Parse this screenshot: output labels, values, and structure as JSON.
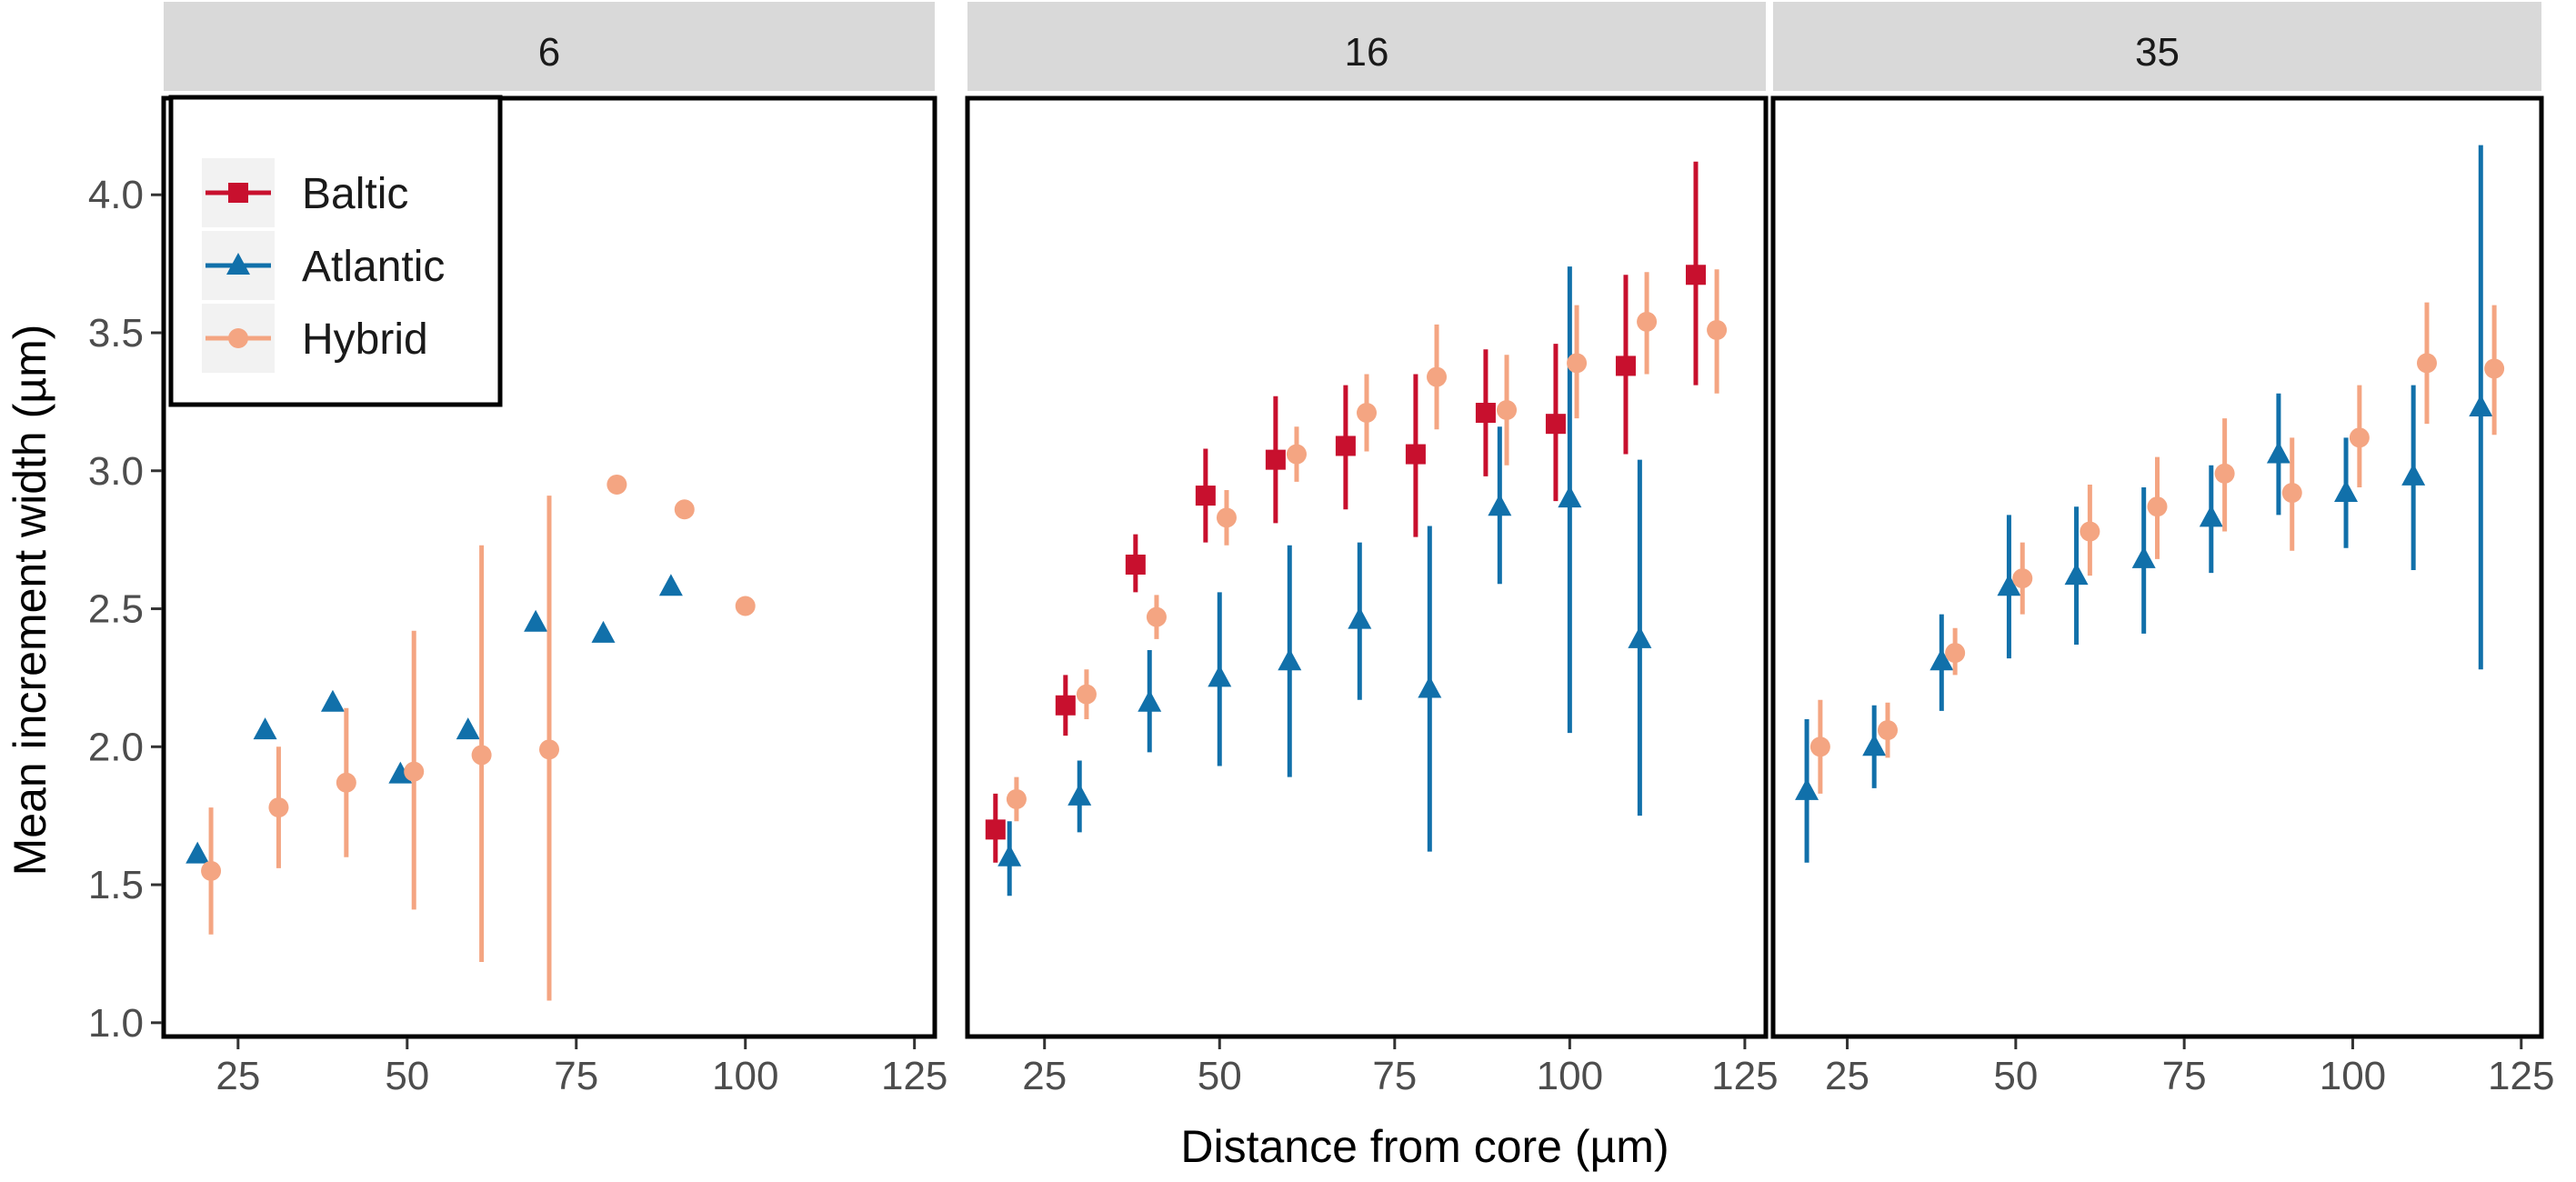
{
  "chart_data": {
    "type": "scatter",
    "xlabel": "Distance from core (µm)",
    "ylabel": "Mean increment width (µm)",
    "xlim": [
      14,
      128
    ],
    "ylim": [
      0.95,
      4.35
    ],
    "xticks": [
      25,
      50,
      75,
      100,
      125
    ],
    "yticks": [
      1.0,
      1.5,
      2.0,
      2.5,
      3.0,
      3.5,
      4.0
    ],
    "xtick_labels": [
      "25",
      "50",
      "75",
      "100",
      "125"
    ],
    "ytick_labels": [
      "1.0",
      "1.5",
      "2.0",
      "2.5",
      "3.0",
      "3.5",
      "4.0"
    ],
    "legend": {
      "position": "top-left",
      "entries": [
        {
          "name": "Baltic",
          "label": "Baltic",
          "color": "#c8102e",
          "shape": "square"
        },
        {
          "name": "Atlantic",
          "label": "Atlantic",
          "color": "#1170aa",
          "shape": "triangle"
        },
        {
          "name": "Hybrid",
          "label": "Hybrid",
          "color": "#f4a582",
          "shape": "circle"
        }
      ]
    },
    "facets": [
      {
        "title": "6",
        "series": [
          {
            "name": "Baltic",
            "points": []
          },
          {
            "name": "Atlantic",
            "points": [
              {
                "x": 19,
                "y": 1.61
              },
              {
                "x": 29,
                "y": 2.06
              },
              {
                "x": 39,
                "y": 2.16
              },
              {
                "x": 49,
                "y": 1.9
              },
              {
                "x": 59,
                "y": 2.06
              },
              {
                "x": 69,
                "y": 2.45
              },
              {
                "x": 79,
                "y": 2.41
              },
              {
                "x": 89,
                "y": 2.58
              }
            ]
          },
          {
            "name": "Hybrid",
            "points": [
              {
                "x": 21,
                "y": 1.55,
                "lo": 1.32,
                "hi": 1.78
              },
              {
                "x": 31,
                "y": 1.78,
                "lo": 1.56,
                "hi": 2.0
              },
              {
                "x": 41,
                "y": 1.87,
                "lo": 1.6,
                "hi": 2.14
              },
              {
                "x": 51,
                "y": 1.91,
                "lo": 1.41,
                "hi": 2.42
              },
              {
                "x": 61,
                "y": 1.97,
                "lo": 1.22,
                "hi": 2.73
              },
              {
                "x": 71,
                "y": 1.99,
                "lo": 1.08,
                "hi": 2.91
              },
              {
                "x": 81,
                "y": 2.95
              },
              {
                "x": 91,
                "y": 2.86
              },
              {
                "x": 100,
                "y": 2.51
              }
            ]
          }
        ]
      },
      {
        "title": "16",
        "series": [
          {
            "name": "Baltic",
            "points": [
              {
                "x": 18,
                "y": 1.7,
                "lo": 1.58,
                "hi": 1.83
              },
              {
                "x": 28,
                "y": 2.15,
                "lo": 2.04,
                "hi": 2.26
              },
              {
                "x": 38,
                "y": 2.66,
                "lo": 2.56,
                "hi": 2.77
              },
              {
                "x": 48,
                "y": 2.91,
                "lo": 2.74,
                "hi": 3.08
              },
              {
                "x": 58,
                "y": 3.04,
                "lo": 2.81,
                "hi": 3.27
              },
              {
                "x": 68,
                "y": 3.09,
                "lo": 2.86,
                "hi": 3.31
              },
              {
                "x": 78,
                "y": 3.06,
                "lo": 2.76,
                "hi": 3.35
              },
              {
                "x": 88,
                "y": 3.21,
                "lo": 2.98,
                "hi": 3.44
              },
              {
                "x": 98,
                "y": 3.17,
                "lo": 2.89,
                "hi": 3.46
              },
              {
                "x": 108,
                "y": 3.38,
                "lo": 3.06,
                "hi": 3.71
              },
              {
                "x": 118,
                "y": 3.71,
                "lo": 3.31,
                "hi": 4.12
              }
            ]
          },
          {
            "name": "Atlantic",
            "points": [
              {
                "x": 20,
                "y": 1.6,
                "lo": 1.46,
                "hi": 1.73
              },
              {
                "x": 30,
                "y": 1.82,
                "lo": 1.69,
                "hi": 1.95
              },
              {
                "x": 40,
                "y": 2.16,
                "lo": 1.98,
                "hi": 2.35
              },
              {
                "x": 50,
                "y": 2.25,
                "lo": 1.93,
                "hi": 2.56
              },
              {
                "x": 60,
                "y": 2.31,
                "lo": 1.89,
                "hi": 2.73
              },
              {
                "x": 70,
                "y": 2.46,
                "lo": 2.17,
                "hi": 2.74
              },
              {
                "x": 80,
                "y": 2.21,
                "lo": 1.62,
                "hi": 2.8
              },
              {
                "x": 90,
                "y": 2.87,
                "lo": 2.59,
                "hi": 3.16
              },
              {
                "x": 100,
                "y": 2.9,
                "lo": 2.05,
                "hi": 3.74
              },
              {
                "x": 110,
                "y": 2.39,
                "lo": 1.75,
                "hi": 3.04
              }
            ]
          },
          {
            "name": "Hybrid",
            "points": [
              {
                "x": 21,
                "y": 1.81,
                "lo": 1.73,
                "hi": 1.89
              },
              {
                "x": 31,
                "y": 2.19,
                "lo": 2.1,
                "hi": 2.28
              },
              {
                "x": 41,
                "y": 2.47,
                "lo": 2.39,
                "hi": 2.55
              },
              {
                "x": 51,
                "y": 2.83,
                "lo": 2.73,
                "hi": 2.93
              },
              {
                "x": 61,
                "y": 3.06,
                "lo": 2.96,
                "hi": 3.16
              },
              {
                "x": 71,
                "y": 3.21,
                "lo": 3.07,
                "hi": 3.35
              },
              {
                "x": 81,
                "y": 3.34,
                "lo": 3.15,
                "hi": 3.53
              },
              {
                "x": 91,
                "y": 3.22,
                "lo": 3.02,
                "hi": 3.42
              },
              {
                "x": 101,
                "y": 3.39,
                "lo": 3.19,
                "hi": 3.6
              },
              {
                "x": 111,
                "y": 3.54,
                "lo": 3.35,
                "hi": 3.72
              },
              {
                "x": 121,
                "y": 3.51,
                "lo": 3.28,
                "hi": 3.73
              }
            ]
          }
        ]
      },
      {
        "title": "35",
        "series": [
          {
            "name": "Baltic",
            "points": []
          },
          {
            "name": "Atlantic",
            "points": [
              {
                "x": 19,
                "y": 1.84,
                "lo": 1.58,
                "hi": 2.1
              },
              {
                "x": 29,
                "y": 2.0,
                "lo": 1.85,
                "hi": 2.15
              },
              {
                "x": 39,
                "y": 2.31,
                "lo": 2.13,
                "hi": 2.48
              },
              {
                "x": 49,
                "y": 2.58,
                "lo": 2.32,
                "hi": 2.84
              },
              {
                "x": 59,
                "y": 2.62,
                "lo": 2.37,
                "hi": 2.87
              },
              {
                "x": 69,
                "y": 2.68,
                "lo": 2.41,
                "hi": 2.94
              },
              {
                "x": 79,
                "y": 2.83,
                "lo": 2.63,
                "hi": 3.02
              },
              {
                "x": 89,
                "y": 3.06,
                "lo": 2.84,
                "hi": 3.28
              },
              {
                "x": 99,
                "y": 2.92,
                "lo": 2.72,
                "hi": 3.12
              },
              {
                "x": 109,
                "y": 2.98,
                "lo": 2.64,
                "hi": 3.31
              },
              {
                "x": 119,
                "y": 3.23,
                "lo": 2.28,
                "hi": 4.18
              }
            ]
          },
          {
            "name": "Hybrid",
            "points": [
              {
                "x": 21,
                "y": 2.0,
                "lo": 1.83,
                "hi": 2.17
              },
              {
                "x": 31,
                "y": 2.06,
                "lo": 1.96,
                "hi": 2.16
              },
              {
                "x": 41,
                "y": 2.34,
                "lo": 2.26,
                "hi": 2.43
              },
              {
                "x": 51,
                "y": 2.61,
                "lo": 2.48,
                "hi": 2.74
              },
              {
                "x": 61,
                "y": 2.78,
                "lo": 2.62,
                "hi": 2.95
              },
              {
                "x": 71,
                "y": 2.87,
                "lo": 2.68,
                "hi": 3.05
              },
              {
                "x": 81,
                "y": 2.99,
                "lo": 2.78,
                "hi": 3.19
              },
              {
                "x": 91,
                "y": 2.92,
                "lo": 2.71,
                "hi": 3.12
              },
              {
                "x": 101,
                "y": 3.12,
                "lo": 2.94,
                "hi": 3.31
              },
              {
                "x": 111,
                "y": 3.39,
                "lo": 3.17,
                "hi": 3.61
              },
              {
                "x": 121,
                "y": 3.37,
                "lo": 3.13,
                "hi": 3.6
              }
            ]
          }
        ]
      }
    ]
  }
}
